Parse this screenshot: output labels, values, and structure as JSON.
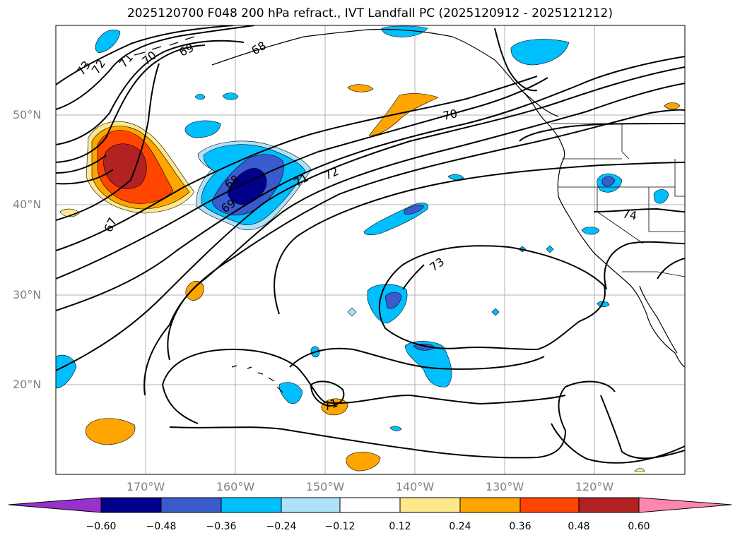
{
  "title": "2025120700 F048 200 hPa refract., IVT Landfall PC (2025120912 - 2025121212)",
  "lat_labels": [
    "50°N",
    "40°N",
    "30°N",
    "20°N"
  ],
  "lon_labels": [
    "170°W",
    "160°W",
    "150°W",
    "140°W",
    "130°W",
    "120°W"
  ],
  "colorbar": {
    "tick_labels": [
      "−0.60",
      "−0.48",
      "−0.36",
      "−0.24",
      "−0.12",
      "0.12",
      "0.24",
      "0.36",
      "0.48",
      "0.60"
    ],
    "colors": [
      "#9932cc",
      "#00008b",
      "#3a5bcd",
      "#00bfff",
      "#aee2fb",
      "#ffffff",
      "#ffe88b",
      "#ffa500",
      "#ff4500",
      "#b22222",
      "#ff87ae"
    ]
  },
  "contour_labels": [
    {
      "text": "73"
    },
    {
      "text": "72"
    },
    {
      "text": "71"
    },
    {
      "text": "70"
    },
    {
      "text": "69"
    },
    {
      "text": "68"
    },
    {
      "text": "68"
    },
    {
      "text": "69"
    },
    {
      "text": "71"
    },
    {
      "text": "72"
    },
    {
      "text": "70"
    },
    {
      "text": "67"
    },
    {
      "text": "73"
    },
    {
      "text": "74"
    },
    {
      "text": "71"
    }
  ]
}
